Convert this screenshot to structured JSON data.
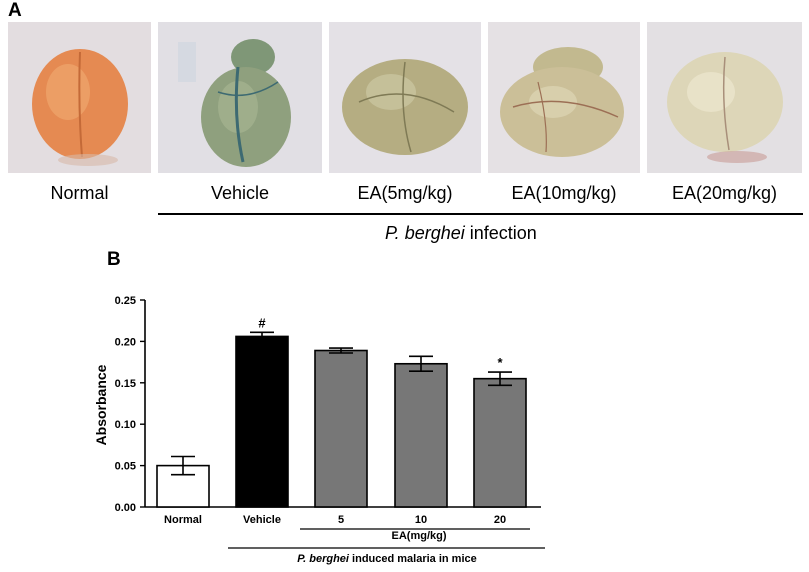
{
  "panel_a": {
    "letter": "A",
    "photos": [
      {
        "label": "Normal",
        "icon": "liver-photo-normal"
      },
      {
        "label": "Vehicle",
        "icon": "liver-photo-vehicle"
      },
      {
        "label": "EA(5mg/kg)",
        "icon": "liver-photo-ea5"
      },
      {
        "label": "EA(10mg/kg)",
        "icon": "liver-photo-ea10"
      },
      {
        "label": "EA(20mg/kg)",
        "icon": "liver-photo-ea20"
      }
    ],
    "infection_italic": "P. berghei",
    "infection_rest": " infection"
  },
  "panel_b": {
    "letter": "B"
  },
  "chart_data": {
    "type": "bar",
    "title": "",
    "ylabel": "Absorbance",
    "ylim": [
      0,
      0.25
    ],
    "yticks": [
      "0.00",
      "0.05",
      "0.10",
      "0.15",
      "0.20",
      "0.25"
    ],
    "categories": [
      "Normal",
      "Vehicle",
      "5",
      "10",
      "20"
    ],
    "values": [
      0.05,
      0.206,
      0.189,
      0.173,
      0.155
    ],
    "errors": [
      0.011,
      0.005,
      0.003,
      0.009,
      0.008
    ],
    "bar_colors": [
      "#ffffff",
      "#000000",
      "#777777",
      "#777777",
      "#777777"
    ],
    "significance": [
      "",
      "#",
      "",
      "",
      "*"
    ],
    "group_label": "EA(mg/kg)",
    "xlabel_italic": "P. berghei",
    "xlabel_rest": " induced malaria in mice"
  }
}
